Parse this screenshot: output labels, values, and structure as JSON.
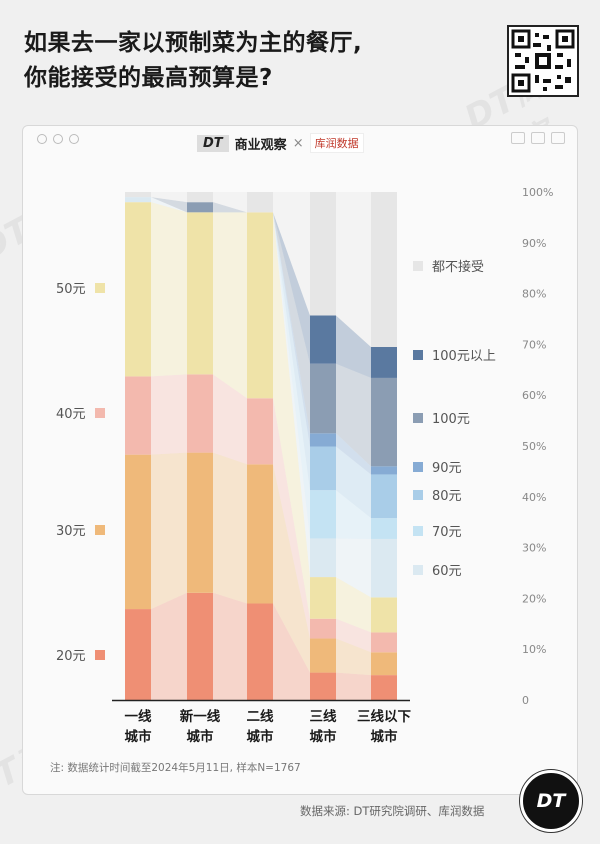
{
  "title_line1": "如果去一家以预制菜为主的餐厅,",
  "title_line2": "你能接受的最高预算是?",
  "brand": {
    "dt": "DT",
    "name": "商业观察",
    "x": "×",
    "kr": "库润数据"
  },
  "note": "注: 数据统计时间截至2024年5月11日, 样本N=1767",
  "source": "数据来源: DT研究院调研、库润数据",
  "badge": "DT",
  "watermark": "DT商业观察",
  "chart_data": {
    "type": "stacked-bar",
    "categories": [
      "一线城市",
      "新一线城市",
      "二线城市",
      "三线城市",
      "三线以下城市"
    ],
    "category_lines": [
      [
        "一线",
        "城市"
      ],
      [
        "新一线",
        "城市"
      ],
      [
        "二线",
        "城市"
      ],
      [
        "三线",
        "城市"
      ],
      [
        "三线以下",
        "城市"
      ]
    ],
    "ylim": [
      0,
      100
    ],
    "yticks": [
      "0",
      "10%",
      "20%",
      "30%",
      "40%",
      "50%",
      "60%",
      "70%",
      "80%",
      "90%",
      "100%"
    ],
    "grid": false,
    "left_legend": [
      {
        "name": "50元",
        "color": "#efe3a8"
      },
      {
        "name": "40元",
        "color": "#f3b9ae"
      },
      {
        "name": "30元",
        "color": "#efb97a"
      },
      {
        "name": "20元",
        "color": "#ef8f74"
      }
    ],
    "right_legend": [
      {
        "name": "都不接受",
        "color": "#e6e6e6"
      },
      {
        "name": "100元以上",
        "color": "#5a79a0"
      },
      {
        "name": "100元",
        "color": "#8b9db3"
      },
      {
        "name": "90元",
        "color": "#86abd4"
      },
      {
        "name": "80元",
        "color": "#a9cde8"
      },
      {
        "name": "70元",
        "color": "#c4e3f3"
      },
      {
        "name": "60元",
        "color": "#dbe9f1"
      }
    ],
    "series": [
      {
        "name": "20元",
        "color": "#ef8f74",
        "values": [
          17.9,
          21.1,
          19.0,
          5.4,
          4.9
        ]
      },
      {
        "name": "30元",
        "color": "#efb97a",
        "values": [
          30.4,
          27.6,
          27.4,
          6.7,
          4.5
        ]
      },
      {
        "name": "40元",
        "color": "#f3b9ae",
        "values": [
          15.4,
          15.4,
          13.0,
          3.9,
          3.9
        ]
      },
      {
        "name": "50元",
        "color": "#efe3a8",
        "values": [
          34.3,
          31.9,
          36.6,
          8.2,
          6.9
        ]
      },
      {
        "name": "60元",
        "color": "#dbe9f1",
        "values": [
          1.0,
          0.0,
          0.0,
          7.6,
          11.5
        ]
      },
      {
        "name": "70元",
        "color": "#c4e3f3",
        "values": [
          0.0,
          0.0,
          0.0,
          9.5,
          4.1
        ]
      },
      {
        "name": "80元",
        "color": "#a9cde8",
        "values": [
          0.0,
          0.0,
          0.0,
          8.6,
          8.6
        ]
      },
      {
        "name": "90元",
        "color": "#86abd4",
        "values": [
          0.0,
          0.0,
          0.0,
          2.6,
          1.6
        ]
      },
      {
        "name": "100元",
        "color": "#8b9db3",
        "values": [
          0.0,
          2.0,
          0.0,
          13.7,
          17.4
        ]
      },
      {
        "name": "100元以上",
        "color": "#5a79a0",
        "values": [
          0.0,
          0.0,
          0.0,
          9.5,
          6.1
        ]
      },
      {
        "name": "都不接受",
        "color": "#e6e6e6",
        "values": [
          1.0,
          2.0,
          4.0,
          24.3,
          30.5
        ]
      }
    ]
  }
}
